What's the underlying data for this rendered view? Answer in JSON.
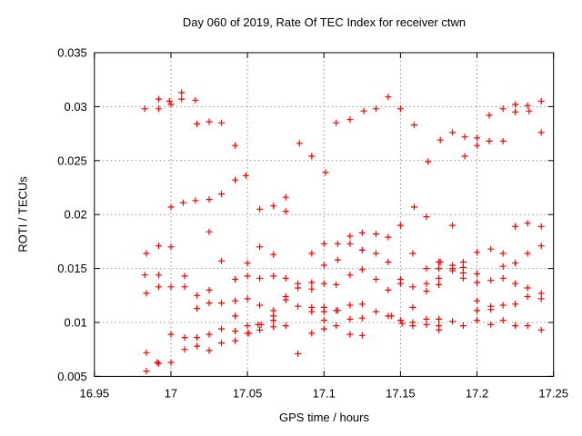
{
  "window": {
    "background": "#ffffff"
  },
  "chart_data": {
    "type": "scatter",
    "title": "Day 060 of 2019, Rate Of TEC Index for receiver ctwn",
    "xlabel": "GPS time / hours",
    "ylabel": "ROTI / TECUs",
    "xlim": [
      16.95,
      17.25
    ],
    "ylim": [
      0.005,
      0.035
    ],
    "xticks": {
      "values": [
        16.95,
        17.0,
        17.05,
        17.1,
        17.15,
        17.2,
        17.25
      ],
      "labels": [
        "16.95",
        "17",
        "17.05",
        "17.1",
        "17.15",
        "17.2",
        "17.25"
      ]
    },
    "yticks": {
      "values": [
        0.005,
        0.01,
        0.015,
        0.02,
        0.025,
        0.03,
        0.035
      ],
      "labels": [
        "0.005",
        "0.01",
        "0.015",
        "0.02",
        "0.025",
        "0.03",
        "0.035"
      ]
    },
    "grid": "dotted",
    "legend": "none",
    "marker": {
      "shape": "plus",
      "color": "#ff0000",
      "size": 7
    },
    "colors": {
      "marker": "#ff0000",
      "grid": "#909090",
      "axis": "#000000",
      "text": "#000000",
      "background": "#ffffff"
    },
    "series": [
      {
        "name": "ROTI",
        "points": [
          [
            16.983,
            0.0298
          ],
          [
            16.992,
            0.0307
          ],
          [
            16.992,
            0.0298
          ],
          [
            16.999,
            0.0305
          ],
          [
            17.0,
            0.0302
          ],
          [
            17.007,
            0.0313
          ],
          [
            17.007,
            0.0307
          ],
          [
            17.016,
            0.0306
          ],
          [
            17.017,
            0.0284
          ],
          [
            17.025,
            0.0286
          ],
          [
            17.033,
            0.0285
          ],
          [
            17.042,
            0.0264
          ],
          [
            17.042,
            0.0232
          ],
          [
            17.049,
            0.0236
          ],
          [
            17.0,
            0.0207
          ],
          [
            17.008,
            0.0211
          ],
          [
            17.016,
            0.0213
          ],
          [
            17.025,
            0.0214
          ],
          [
            17.033,
            0.0219
          ],
          [
            17.142,
            0.0309
          ],
          [
            17.134,
            0.0298
          ],
          [
            17.126,
            0.0296
          ],
          [
            17.117,
            0.0288
          ],
          [
            17.108,
            0.0285
          ],
          [
            17.084,
            0.0266
          ],
          [
            17.092,
            0.0254
          ],
          [
            17.101,
            0.0239
          ],
          [
            17.075,
            0.0216
          ],
          [
            17.067,
            0.0208
          ],
          [
            17.058,
            0.0205
          ],
          [
            17.075,
            0.0203
          ],
          [
            17.15,
            0.0298
          ],
          [
            17.159,
            0.0283
          ],
          [
            17.242,
            0.0305
          ],
          [
            17.225,
            0.0302
          ],
          [
            17.225,
            0.0295
          ],
          [
            17.233,
            0.0301
          ],
          [
            17.234,
            0.0296
          ],
          [
            17.217,
            0.0298
          ],
          [
            17.208,
            0.0292
          ],
          [
            17.242,
            0.0276
          ],
          [
            17.184,
            0.0276
          ],
          [
            17.176,
            0.0269
          ],
          [
            17.192,
            0.0272
          ],
          [
            17.2,
            0.0271
          ],
          [
            17.2,
            0.0264
          ],
          [
            17.208,
            0.0268
          ],
          [
            17.217,
            0.0268
          ],
          [
            17.192,
            0.0254
          ],
          [
            17.168,
            0.0249
          ],
          [
            17.159,
            0.0207
          ],
          [
            17.025,
            0.0184
          ],
          [
            16.992,
            0.0171
          ],
          [
            17.0,
            0.017
          ],
          [
            16.984,
            0.0164
          ],
          [
            17.033,
            0.0157
          ],
          [
            16.983,
            0.0144
          ],
          [
            16.992,
            0.0144
          ],
          [
            17.009,
            0.0143
          ],
          [
            17.042,
            0.014
          ],
          [
            16.992,
            0.0133
          ],
          [
            17.0,
            0.0133
          ],
          [
            17.009,
            0.0133
          ],
          [
            16.984,
            0.0127
          ],
          [
            17.025,
            0.013
          ],
          [
            17.017,
            0.0125
          ],
          [
            17.025,
            0.0118
          ],
          [
            17.033,
            0.0118
          ],
          [
            17.042,
            0.012
          ],
          [
            17.017,
            0.0113
          ],
          [
            17.042,
            0.0106
          ],
          [
            17.033,
            0.0094
          ],
          [
            17.042,
            0.0092
          ],
          [
            17.0,
            0.0089
          ],
          [
            17.009,
            0.0086
          ],
          [
            17.017,
            0.0086
          ],
          [
            17.025,
            0.0089
          ],
          [
            17.033,
            0.0081
          ],
          [
            17.042,
            0.0083
          ],
          [
            17.009,
            0.0075
          ],
          [
            17.017,
            0.0078
          ],
          [
            17.025,
            0.0074
          ],
          [
            16.984,
            0.0072
          ],
          [
            16.991,
            0.0063
          ],
          [
            16.992,
            0.0062
          ],
          [
            17.0,
            0.0063
          ],
          [
            16.984,
            0.0055
          ],
          [
            17.058,
            0.017
          ],
          [
            17.067,
            0.0163
          ],
          [
            17.092,
            0.0164
          ],
          [
            17.1,
            0.0173
          ],
          [
            17.109,
            0.0173
          ],
          [
            17.117,
            0.018
          ],
          [
            17.117,
            0.0173
          ],
          [
            17.125,
            0.0183
          ],
          [
            17.134,
            0.0182
          ],
          [
            17.142,
            0.0179
          ],
          [
            17.125,
            0.0167
          ],
          [
            17.134,
            0.0164
          ],
          [
            17.109,
            0.0158
          ],
          [
            17.1,
            0.0153
          ],
          [
            17.142,
            0.0156
          ],
          [
            17.05,
            0.0155
          ],
          [
            17.05,
            0.0143
          ],
          [
            17.058,
            0.0141
          ],
          [
            17.067,
            0.0143
          ],
          [
            17.075,
            0.0141
          ],
          [
            17.083,
            0.0136
          ],
          [
            17.083,
            0.0132
          ],
          [
            17.092,
            0.0137
          ],
          [
            17.092,
            0.0131
          ],
          [
            17.1,
            0.0136
          ],
          [
            17.108,
            0.0135
          ],
          [
            17.117,
            0.0144
          ],
          [
            17.125,
            0.0149
          ],
          [
            17.134,
            0.014
          ],
          [
            17.142,
            0.013
          ],
          [
            17.075,
            0.0124
          ],
          [
            17.075,
            0.0121
          ],
          [
            17.058,
            0.0116
          ],
          [
            17.05,
            0.0122
          ],
          [
            17.083,
            0.0115
          ],
          [
            17.067,
            0.0111
          ],
          [
            17.067,
            0.0106
          ],
          [
            17.067,
            0.0102
          ],
          [
            17.067,
            0.0096
          ],
          [
            17.057,
            0.0098
          ],
          [
            17.059,
            0.0098
          ],
          [
            17.075,
            0.0097
          ],
          [
            17.05,
            0.0097
          ],
          [
            17.05,
            0.009
          ],
          [
            17.051,
            0.009
          ],
          [
            17.058,
            0.0093
          ],
          [
            17.092,
            0.0114
          ],
          [
            17.092,
            0.011
          ],
          [
            17.1,
            0.0114
          ],
          [
            17.1,
            0.011
          ],
          [
            17.108,
            0.0111
          ],
          [
            17.109,
            0.0111
          ],
          [
            17.117,
            0.0116
          ],
          [
            17.125,
            0.0117
          ],
          [
            17.117,
            0.0103
          ],
          [
            17.125,
            0.0104
          ],
          [
            17.134,
            0.011
          ],
          [
            17.142,
            0.0106
          ],
          [
            17.144,
            0.0106
          ],
          [
            17.1,
            0.0102
          ],
          [
            17.1,
            0.0094
          ],
          [
            17.108,
            0.0097
          ],
          [
            17.117,
            0.0089
          ],
          [
            17.125,
            0.0088
          ],
          [
            17.092,
            0.009
          ],
          [
            17.083,
            0.0071
          ],
          [
            17.167,
            0.0198
          ],
          [
            17.15,
            0.019
          ],
          [
            17.184,
            0.019
          ],
          [
            17.225,
            0.0189
          ],
          [
            17.233,
            0.0192
          ],
          [
            17.242,
            0.0189
          ],
          [
            17.242,
            0.0171
          ],
          [
            17.233,
            0.0164
          ],
          [
            17.158,
            0.0164
          ],
          [
            17.2,
            0.0165
          ],
          [
            17.209,
            0.0168
          ],
          [
            17.217,
            0.0164
          ],
          [
            17.217,
            0.0152
          ],
          [
            17.225,
            0.0155
          ],
          [
            17.175,
            0.0156
          ],
          [
            17.176,
            0.0156
          ],
          [
            17.175,
            0.015
          ],
          [
            17.175,
            0.0141
          ],
          [
            17.167,
            0.015
          ],
          [
            17.184,
            0.0153
          ],
          [
            17.184,
            0.015
          ],
          [
            17.184,
            0.0148
          ],
          [
            17.191,
            0.0156
          ],
          [
            17.191,
            0.0151
          ],
          [
            17.191,
            0.0146
          ],
          [
            17.191,
            0.0141
          ],
          [
            17.175,
            0.0135
          ],
          [
            17.158,
            0.0133
          ],
          [
            17.15,
            0.014
          ],
          [
            17.15,
            0.0136
          ],
          [
            17.167,
            0.0136
          ],
          [
            17.167,
            0.0129
          ],
          [
            17.2,
            0.0145
          ],
          [
            17.2,
            0.0137
          ],
          [
            17.209,
            0.0139
          ],
          [
            17.217,
            0.0141
          ],
          [
            17.225,
            0.0136
          ],
          [
            17.233,
            0.0132
          ],
          [
            17.233,
            0.0124
          ],
          [
            17.242,
            0.0127
          ],
          [
            17.242,
            0.0122
          ],
          [
            17.158,
            0.0114
          ],
          [
            17.2,
            0.012
          ],
          [
            17.2,
            0.0111
          ],
          [
            17.209,
            0.0115
          ],
          [
            17.209,
            0.0112
          ],
          [
            17.217,
            0.0116
          ],
          [
            17.225,
            0.0117
          ],
          [
            17.167,
            0.0103
          ],
          [
            17.175,
            0.0103
          ],
          [
            17.15,
            0.0102
          ],
          [
            17.151,
            0.0099
          ],
          [
            17.158,
            0.01
          ],
          [
            17.158,
            0.0097
          ],
          [
            17.167,
            0.0098
          ],
          [
            17.175,
            0.0097
          ],
          [
            17.175,
            0.0093
          ],
          [
            17.184,
            0.0101
          ],
          [
            17.191,
            0.0097
          ],
          [
            17.2,
            0.0102
          ],
          [
            17.209,
            0.0098
          ],
          [
            17.217,
            0.0102
          ],
          [
            17.225,
            0.0097
          ],
          [
            17.233,
            0.0097
          ],
          [
            17.242,
            0.0093
          ]
        ]
      }
    ]
  }
}
